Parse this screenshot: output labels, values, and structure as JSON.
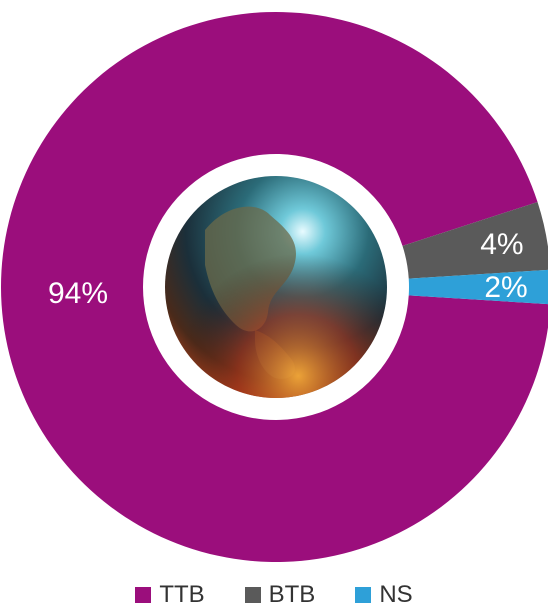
{
  "chart_data": {
    "type": "pie",
    "style": "donut",
    "categories": [
      "TTB",
      "BTB",
      "NS"
    ],
    "values": [
      94,
      4,
      2
    ],
    "data_labels": [
      "94%",
      "4%",
      "2%"
    ],
    "colors": [
      "#9b0e7c",
      "#5a5a5a",
      "#2ea0d8"
    ],
    "legend_position": "bottom",
    "center_image": "globe-earth-image"
  },
  "legend": {
    "items": [
      {
        "label": "TTB",
        "color": "#9b0e7c"
      },
      {
        "label": "BTB",
        "color": "#5a5a5a"
      },
      {
        "label": "NS",
        "color": "#2ea0d8"
      }
    ]
  }
}
